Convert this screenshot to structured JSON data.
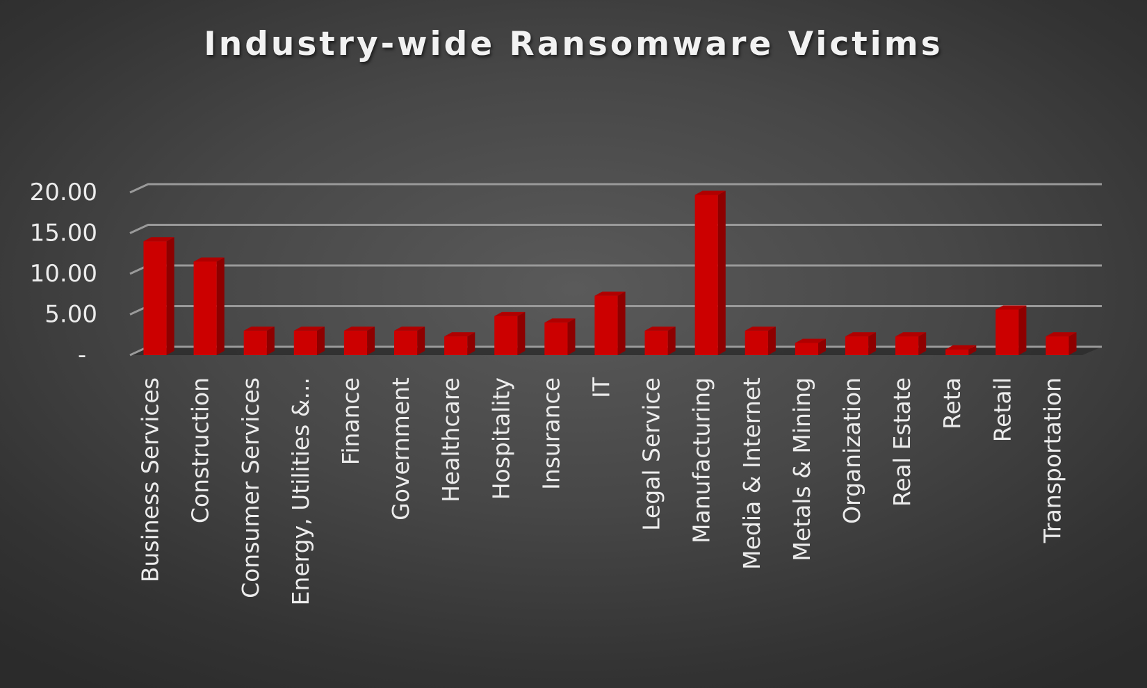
{
  "chart_data": {
    "type": "bar",
    "title": "Industry-wide Ransomware Victims",
    "xlabel": "",
    "ylabel": "",
    "ylim": [
      0,
      20
    ],
    "yticks": [
      {
        "value": 0,
        "label": "-"
      },
      {
        "value": 5,
        "label": "5.00"
      },
      {
        "value": 10,
        "label": "10.00"
      },
      {
        "value": 15,
        "label": "15.00"
      },
      {
        "value": 20,
        "label": "20.00"
      }
    ],
    "categories": [
      "Business Services",
      "Construction",
      "Consumer Services",
      "Energy, Utilities &...",
      "Finance",
      "Government",
      "Healthcare",
      "Hospitality",
      "Insurance",
      "IT",
      "Legal Service",
      "Manufacturing",
      "Media & Internet",
      "Metals & Mining",
      "Organization",
      "Real Estate",
      "Reta",
      "Retail",
      "Transportation"
    ],
    "values": [
      14,
      11.5,
      3,
      3,
      3,
      3,
      2.3,
      4.8,
      4,
      7.3,
      3,
      19.7,
      3,
      1.5,
      2.3,
      2.3,
      0.7,
      5.6,
      2.3
    ],
    "grid": true,
    "legend": "none",
    "colors": {
      "bar_front": "#cc0000",
      "bar_side": "#8e0000",
      "bar_top": "#b00000",
      "grid": "#9a9a9a",
      "text": "#ececec"
    }
  }
}
